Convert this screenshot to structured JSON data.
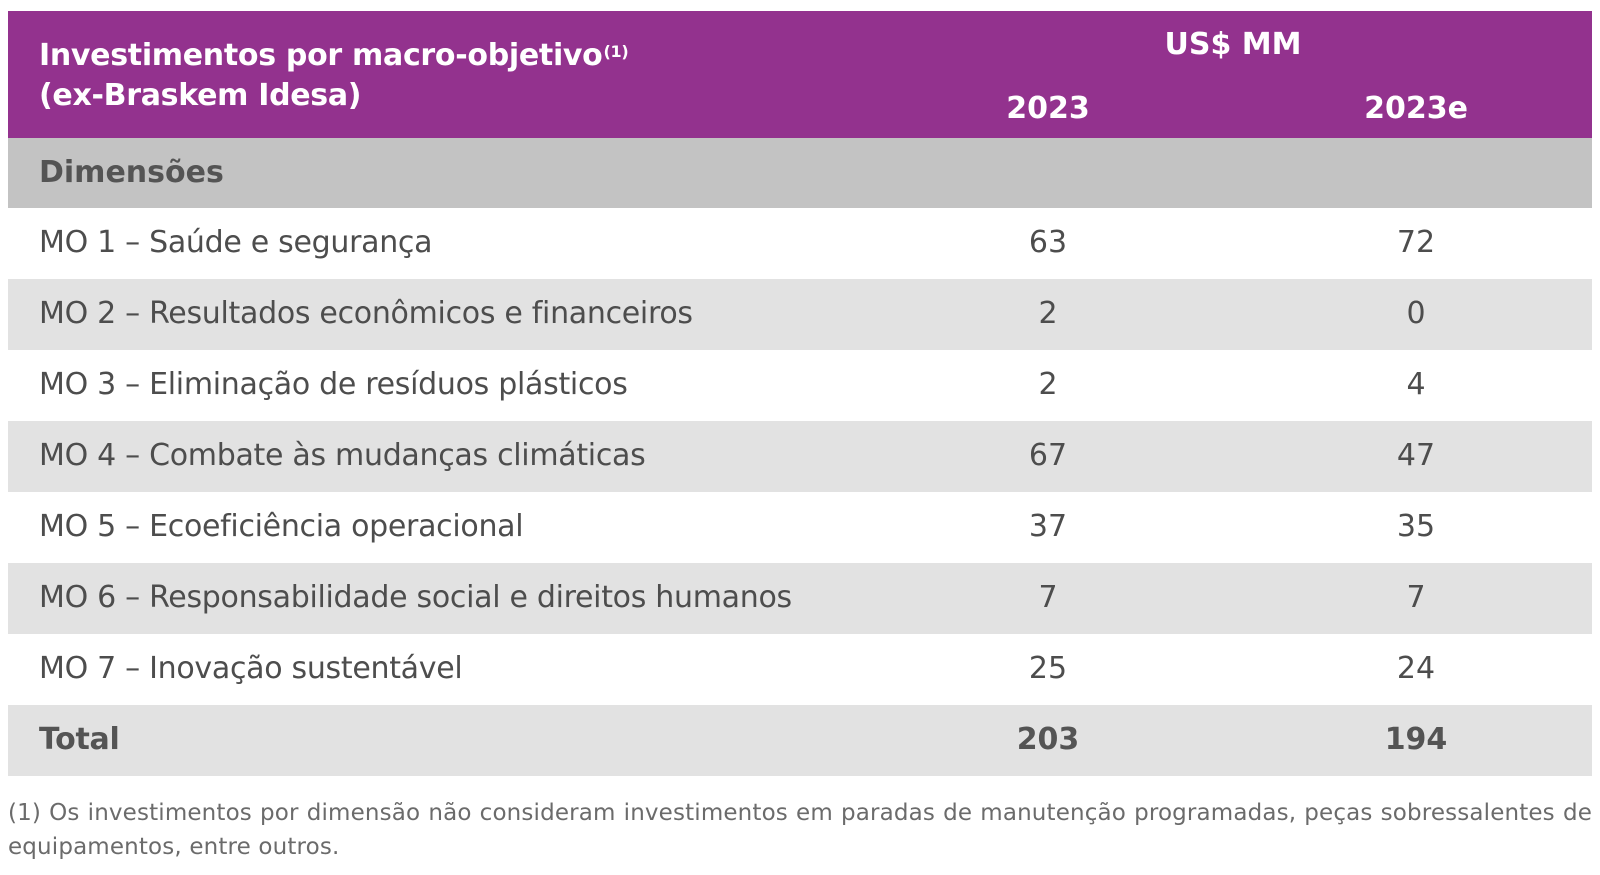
{
  "header": {
    "title_line1": "Investimentos por macro-objetivo",
    "title_note": "(1)",
    "title_line2": "(ex-Braskem Idesa)",
    "unit": "US$ MM",
    "year1": "2023",
    "year2": "2023e",
    "background_color": "#93328e"
  },
  "section": {
    "label": "Dimensões"
  },
  "rows": [
    {
      "label": "MO 1 – Saúde e segurança",
      "v2023": "63",
      "v2023e": "72"
    },
    {
      "label": "MO 2 – Resultados econômicos e financeiros",
      "v2023": "2",
      "v2023e": "0"
    },
    {
      "label": "MO 3 – Eliminação de resíduos plásticos",
      "v2023": "2",
      "v2023e": "4"
    },
    {
      "label": "MO 4 – Combate às mudanças climáticas",
      "v2023": "67",
      "v2023e": "47"
    },
    {
      "label": "MO 5 – Ecoeficiência operacional",
      "v2023": "37",
      "v2023e": "35"
    },
    {
      "label": "MO 6 – Responsabilidade social e direitos humanos",
      "v2023": "7",
      "v2023e": "7"
    },
    {
      "label": "MO 7 – Inovação sustentável",
      "v2023": "25",
      "v2023e": "24"
    }
  ],
  "total": {
    "label": "Total",
    "v2023": "203",
    "v2023e": "194"
  },
  "footnote": "(1) Os investimentos por dimensão não consideram investimentos em paradas de manutenção programadas, peças sobressalentes de equipamentos, entre outros."
}
